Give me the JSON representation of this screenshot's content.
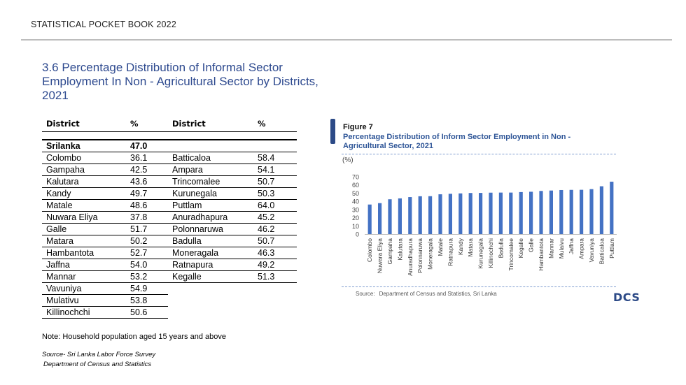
{
  "header": "STATISTICAL POCKET BOOK 2022",
  "title": "3.6 Percentage Distribution of Informal  Sector Employment In Non - Agricultural Sector by Districts,  2021",
  "table": {
    "headers": [
      "District",
      "%",
      "District",
      "%"
    ],
    "national": {
      "district": "Srilanka",
      "value": "47.0"
    },
    "rows": [
      [
        "Colombo",
        "36.1",
        "Batticaloa",
        "58.4"
      ],
      [
        "Gampaha",
        "42.5",
        "Ampara",
        "54.1"
      ],
      [
        "Kalutara",
        "43.6",
        "Trincomalee",
        "50.7"
      ],
      [
        "Kandy",
        "49.7",
        "Kurunegala",
        "50.3"
      ],
      [
        "Matale",
        "48.6",
        "Puttlam",
        "64.0"
      ],
      [
        "Nuwara Eliya",
        "37.8",
        "Anuradhapura",
        "45.2"
      ],
      [
        "Galle",
        "51.7",
        "Polonnaruwa",
        "46.2"
      ],
      [
        "Matara",
        "50.2",
        "Badulla",
        "50.7"
      ],
      [
        "Hambantota",
        "52.7",
        "Moneragala",
        "46.3"
      ],
      [
        "Jaffna",
        "54.0",
        "Ratnapura",
        "49.2"
      ],
      [
        "Mannar",
        "53.2",
        "Kegalle",
        "51.3"
      ],
      [
        "Vavuniya",
        "54.9",
        "",
        ""
      ],
      [
        "Mulativu",
        "53.8",
        "",
        ""
      ],
      [
        "Killinochchi",
        "50.6",
        "",
        ""
      ]
    ]
  },
  "note": "Note: Household population aged 15 years and above",
  "source_line1": "Source- Sri Lanka Labor Force Survey",
  "source_line2": "Department of Census and Statistics",
  "figure": {
    "label": "Figure 7",
    "title": "Percentage Distribution of Inform Sector Employment in Non - Agricultural Sector, 2021",
    "source_prefix": "Source:",
    "source_text": "Department of Census and Statistics, Sri Lanka",
    "logo": "DCS"
  },
  "chart_data": {
    "type": "bar",
    "ylabel": "(%)",
    "ylim": [
      0,
      70
    ],
    "yticks": [
      0,
      10,
      20,
      30,
      40,
      50,
      60,
      70
    ],
    "grid": false,
    "bar_color": "#4472c4",
    "categories": [
      "Colombo",
      "Nuwara Eliya",
      "Gampaha",
      "Kalutara",
      "Anuradhapura",
      "Polonnaruwa",
      "Moneragala",
      "Matale",
      "Ratnapura",
      "Kandy",
      "Matara",
      "Kurunegala",
      "Killinochchi",
      "Badulla",
      "Trincomalee",
      "Kegalle",
      "Galle",
      "Hambantota",
      "Mannar",
      "Mulaivu",
      "Jaffna",
      "Ampara",
      "Vavuniya",
      "Batticaloa",
      "Puttlam"
    ],
    "values": [
      36.1,
      37.8,
      42.5,
      43.6,
      45.2,
      46.2,
      46.3,
      48.6,
      49.2,
      49.7,
      50.2,
      50.3,
      50.6,
      50.7,
      50.7,
      51.3,
      51.7,
      52.7,
      53.2,
      53.8,
      54.0,
      54.1,
      54.9,
      58.4,
      64.0
    ]
  }
}
